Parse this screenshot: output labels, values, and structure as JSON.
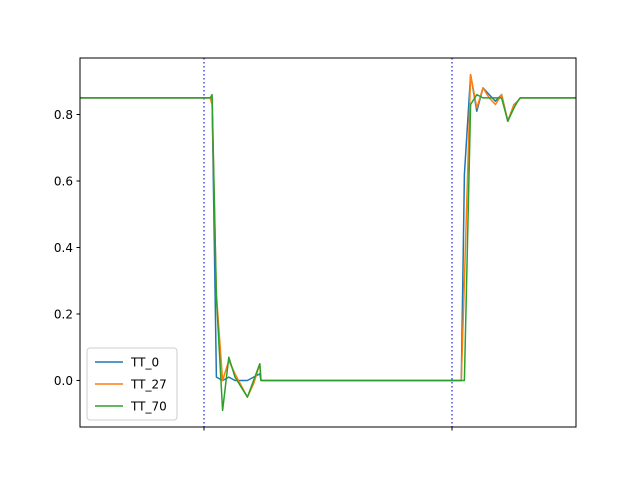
{
  "chart_data": {
    "type": "line",
    "title": "",
    "xlabel": "",
    "ylabel": "",
    "xlim": [
      0,
      80
    ],
    "ylim": [
      -0.14,
      0.97
    ],
    "yticks": [
      0.0,
      0.2,
      0.4,
      0.6,
      0.8
    ],
    "ytick_labels": [
      "0.0",
      "0.2",
      "0.4",
      "0.6",
      "0.8"
    ],
    "xticks": [
      20,
      60
    ],
    "xtick_labels": [
      "",
      ""
    ],
    "vlines": [
      20,
      60
    ],
    "grid": false,
    "legend_position": "lower-left",
    "series": [
      {
        "name": "TT_0",
        "color": "#1f77b4",
        "x": [
          0,
          21,
          21.3,
          22,
          23,
          24,
          25,
          27,
          28,
          29,
          29.2,
          30,
          60,
          61.5,
          62,
          63,
          64,
          65,
          66,
          67,
          68,
          69,
          70,
          70.6,
          71,
          72,
          73,
          74,
          80
        ],
        "y": [
          0.85,
          0.85,
          0.84,
          0.01,
          0.0,
          0.01,
          0.0,
          0.0,
          0.01,
          0.02,
          0.0,
          0.0,
          0.0,
          0.0,
          0.62,
          0.92,
          0.81,
          0.88,
          0.86,
          0.84,
          0.86,
          0.78,
          0.83,
          0.84,
          0.85,
          0.85,
          0.85,
          0.85,
          0.85
        ]
      },
      {
        "name": "TT_27",
        "color": "#ff7f0e",
        "x": [
          0,
          21,
          21.3,
          22,
          23,
          24,
          25,
          27,
          28,
          29,
          29.2,
          30,
          60,
          61.5,
          62,
          63,
          64,
          65,
          66,
          67,
          68,
          69,
          70,
          70.6,
          71,
          72,
          73,
          74,
          80
        ],
        "y": [
          0.85,
          0.85,
          0.83,
          0.26,
          0.0,
          0.06,
          0.02,
          -0.05,
          -0.01,
          0.05,
          0.0,
          0.0,
          0.0,
          0.0,
          0.3,
          0.92,
          0.82,
          0.88,
          0.85,
          0.83,
          0.86,
          0.78,
          0.83,
          0.84,
          0.85,
          0.85,
          0.85,
          0.85,
          0.85
        ]
      },
      {
        "name": "TT_70",
        "color": "#2ca02c",
        "x": [
          0,
          21,
          21.3,
          22,
          23,
          24,
          25,
          27,
          28,
          29,
          29.2,
          30,
          60,
          61.5,
          62,
          63,
          64,
          65,
          66,
          67,
          68,
          69,
          70,
          70.6,
          71,
          72,
          73,
          74,
          80
        ],
        "y": [
          0.85,
          0.85,
          0.86,
          0.25,
          -0.09,
          0.07,
          0.01,
          -0.05,
          0.0,
          0.05,
          0.0,
          0.0,
          0.0,
          0.0,
          -0.0,
          0.83,
          0.86,
          0.85,
          0.85,
          0.85,
          0.85,
          0.78,
          0.82,
          0.84,
          0.85,
          0.85,
          0.85,
          0.85,
          0.85
        ]
      }
    ]
  }
}
